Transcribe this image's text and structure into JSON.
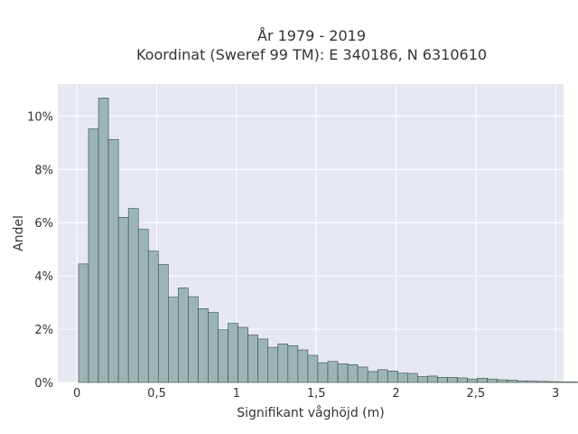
{
  "chart_data": {
    "type": "bar",
    "title_line1": "År 1979 - 2019",
    "title_line2": "Koordinat (Sweref 99 TM): E 340186, N 6310610",
    "xlabel": "Signifikant våghöjd (m)",
    "ylabel": "Andel",
    "xlim": [
      -0.12,
      3.05
    ],
    "ylim": [
      0,
      0.112
    ],
    "x_ticks": [
      {
        "value": 0,
        "label": "0"
      },
      {
        "value": 0.5,
        "label": "0,5"
      },
      {
        "value": 1,
        "label": "1"
      },
      {
        "value": 1.5,
        "label": "1,5"
      },
      {
        "value": 2,
        "label": "2"
      },
      {
        "value": 2.5,
        "label": "2,5"
      },
      {
        "value": 3,
        "label": "3"
      }
    ],
    "y_ticks": [
      {
        "value": 0,
        "label": "0%"
      },
      {
        "value": 0.02,
        "label": "2%"
      },
      {
        "value": 0.04,
        "label": "4%"
      },
      {
        "value": 0.06,
        "label": "6%"
      },
      {
        "value": 0.08,
        "label": "8%"
      },
      {
        "value": 0.1,
        "label": "10%"
      }
    ],
    "grid": true,
    "bin_start": 0.01,
    "bin_width": 0.0625,
    "values": [
      0.0445,
      0.0952,
      0.1068,
      0.0912,
      0.062,
      0.0653,
      0.0575,
      0.0493,
      0.0443,
      0.032,
      0.0355,
      0.0322,
      0.0277,
      0.0263,
      0.0198,
      0.0222,
      0.0207,
      0.0178,
      0.0163,
      0.0132,
      0.0145,
      0.0138,
      0.0122,
      0.0102,
      0.0074,
      0.0079,
      0.007,
      0.0067,
      0.0058,
      0.0041,
      0.0048,
      0.0043,
      0.0035,
      0.0034,
      0.0022,
      0.0024,
      0.0019,
      0.0019,
      0.0017,
      0.0013,
      0.0016,
      0.0013,
      0.001,
      0.0009,
      0.0006,
      0.0005,
      0.0004,
      0.0003,
      0.0002,
      0.0002,
      0.0001
    ],
    "colors": {
      "plot_bg": "#e5e8f0",
      "grid": "#ffffff",
      "bar_fill": "#9bb5b5",
      "bar_stroke": "#3c4a4a"
    }
  }
}
